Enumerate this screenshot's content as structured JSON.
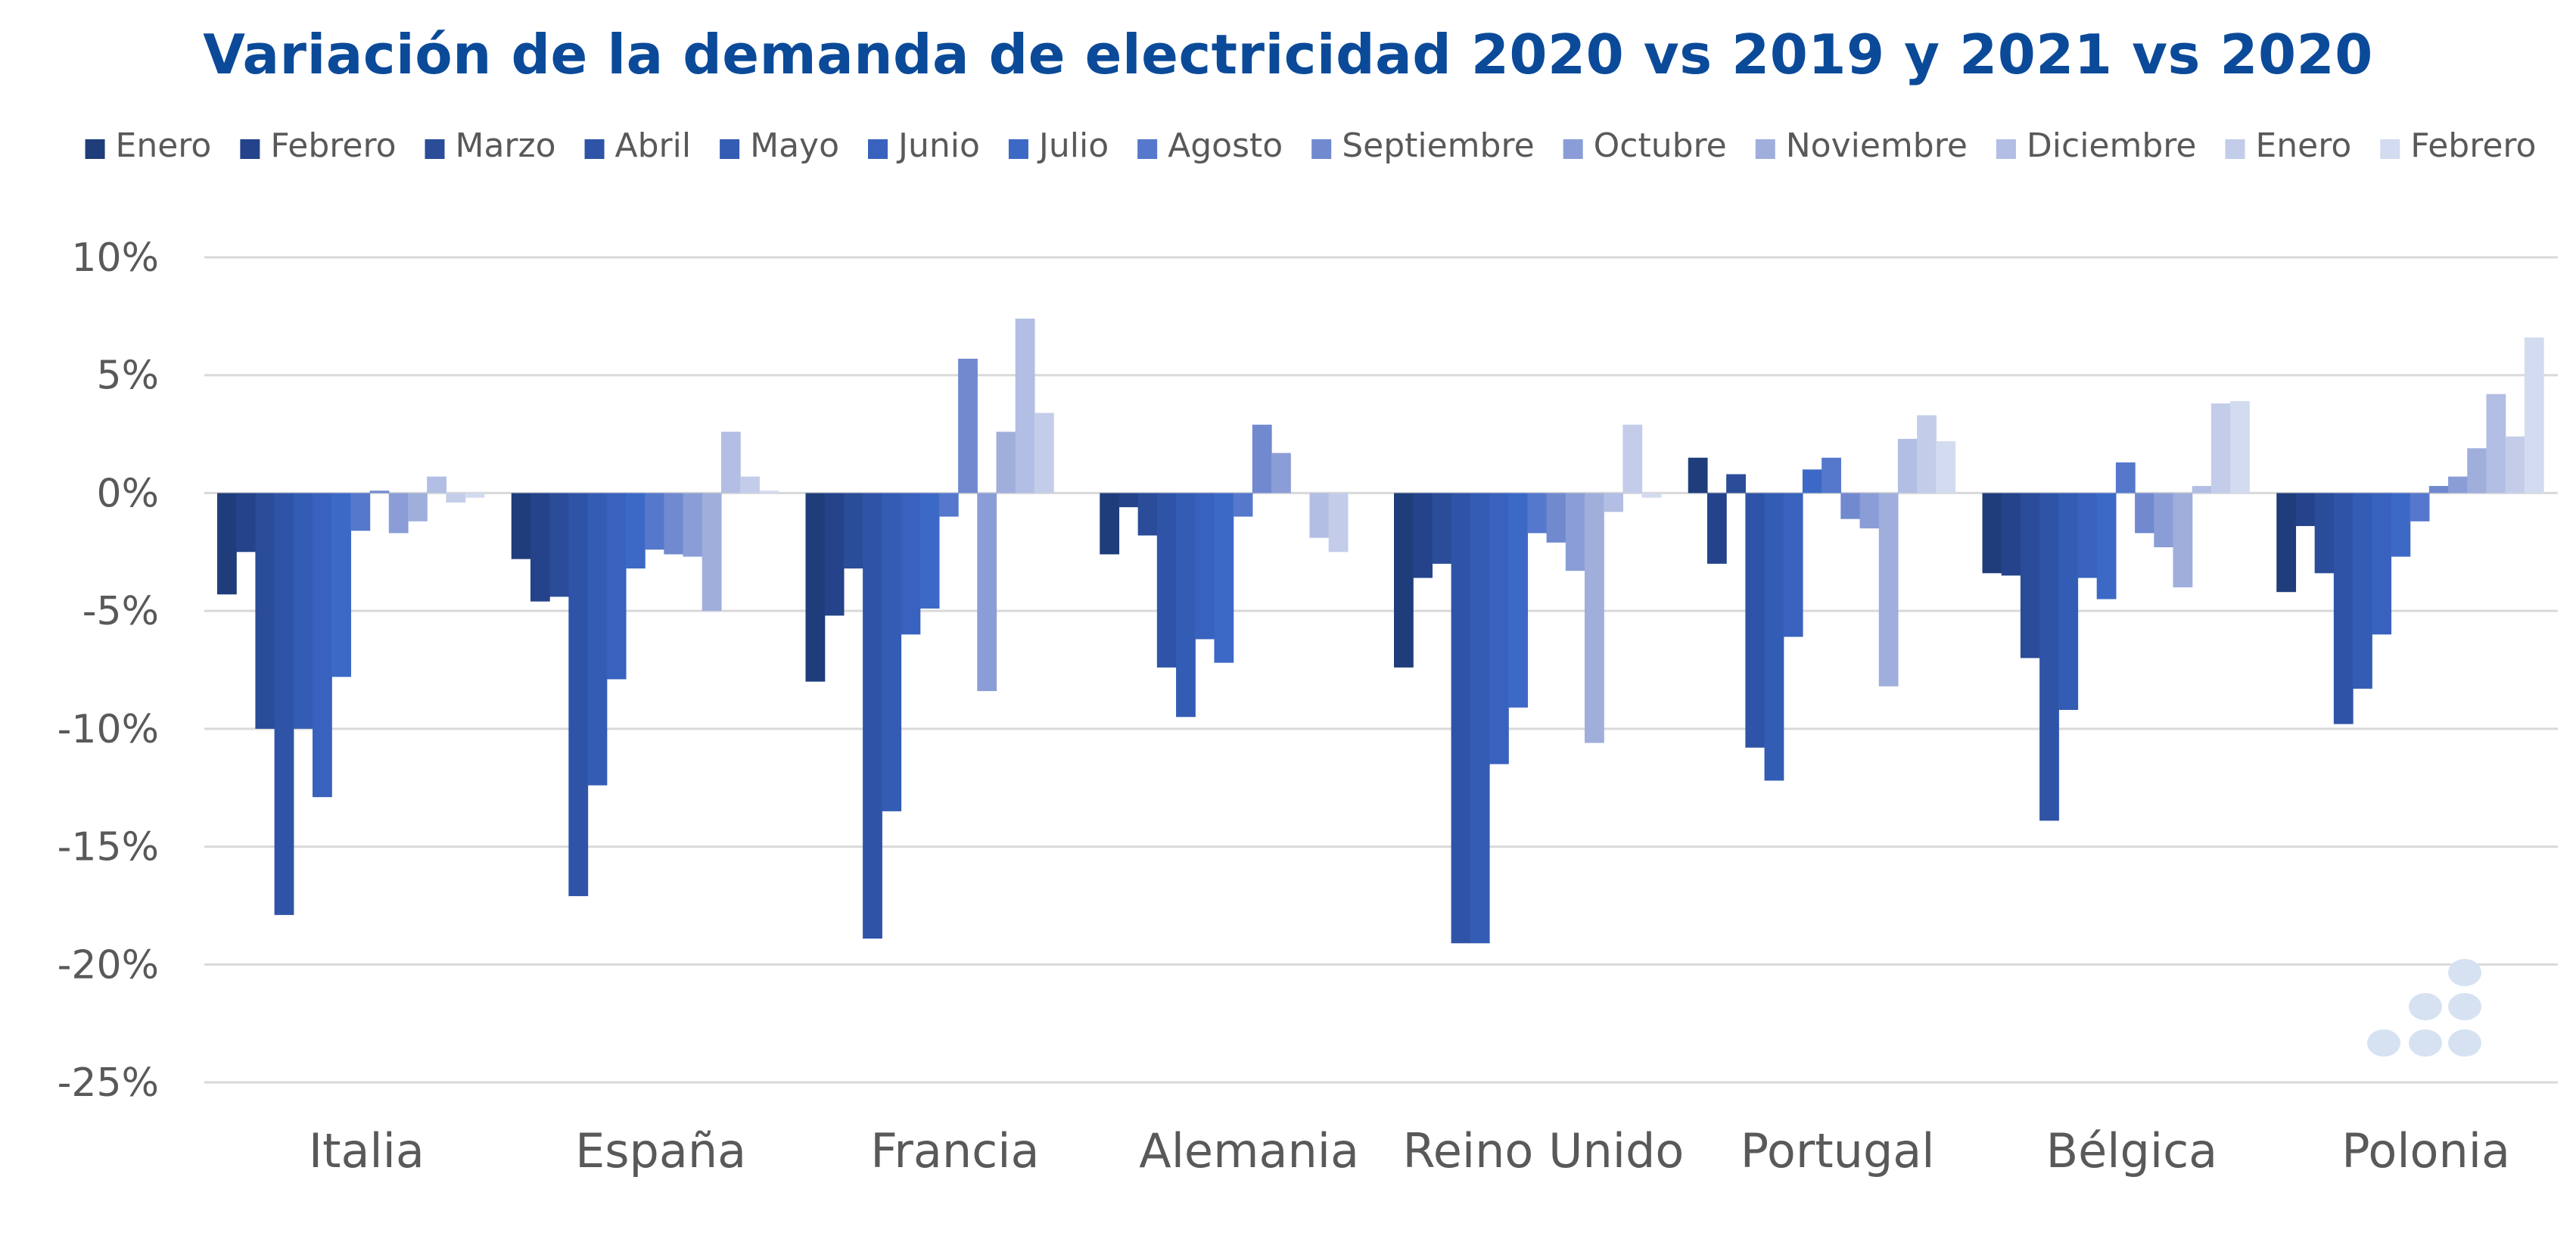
{
  "chart_data": {
    "type": "bar",
    "title": "Variación de la demanda de electricidad 2020 vs 2019 y 2021 vs 2020",
    "xlabel": "",
    "ylabel": "",
    "ylim": [
      -25,
      10
    ],
    "y_ticks": [
      10,
      5,
      0,
      -5,
      -10,
      -15,
      -20,
      -25
    ],
    "y_tick_labels": [
      "10%",
      "5%",
      "0%",
      "-5%",
      "-10%",
      "-15%",
      "-20%",
      "-25%"
    ],
    "grid": true,
    "legend_position": "top",
    "categories": [
      "Italia",
      "España",
      "Francia",
      "Alemania",
      "Reino Unido",
      "Portugal",
      "Bélgica",
      "Polonia"
    ],
    "series": [
      {
        "name": "Enero",
        "color": "#1f3d7a",
        "values": [
          -4.3,
          -2.8,
          -8.0,
          -2.6,
          -7.4,
          1.5,
          -3.4,
          -4.2
        ]
      },
      {
        "name": "Febrero",
        "color": "#24438a",
        "values": [
          -2.5,
          -4.6,
          -5.2,
          -0.6,
          -3.6,
          -3.0,
          -3.5,
          -1.4
        ]
      },
      {
        "name": "Marzo",
        "color": "#2a4c99",
        "values": [
          -10.0,
          -4.4,
          -3.2,
          -1.8,
          -3.0,
          0.8,
          -7.0,
          -3.4
        ]
      },
      {
        "name": "Abril",
        "color": "#2f54a7",
        "values": [
          -17.9,
          -17.1,
          -18.9,
          -7.4,
          -19.1,
          -10.8,
          -13.9,
          -9.8
        ]
      },
      {
        "name": "Mayo",
        "color": "#335cb4",
        "values": [
          -10.0,
          -12.4,
          -13.5,
          -9.5,
          -19.1,
          -12.2,
          -9.2,
          -8.3
        ]
      },
      {
        "name": "Junio",
        "color": "#3862be",
        "values": [
          -12.9,
          -7.9,
          -6.0,
          -6.2,
          -11.5,
          -6.1,
          -3.6,
          -6.0
        ]
      },
      {
        "name": "Julio",
        "color": "#3d69c6",
        "values": [
          -7.8,
          -3.2,
          -4.9,
          -7.2,
          -9.1,
          1.0,
          -4.5,
          -2.7
        ]
      },
      {
        "name": "Agosto",
        "color": "#5578cc",
        "values": [
          -1.6,
          -2.4,
          -1.0,
          -1.0,
          -1.7,
          1.5,
          1.3,
          -1.2
        ]
      },
      {
        "name": "Septiembre",
        "color": "#7089cf",
        "values": [
          0.1,
          -2.6,
          5.7,
          2.9,
          -2.1,
          -1.1,
          -1.7,
          0.3
        ]
      },
      {
        "name": "Octubre",
        "color": "#8a9dd6",
        "values": [
          -1.7,
          -2.7,
          -8.4,
          1.7,
          -3.3,
          -1.5,
          -2.3,
          0.7
        ]
      },
      {
        "name": "Noviembre",
        "color": "#a0aedc",
        "values": [
          -1.2,
          -5.0,
          2.6,
          0.0,
          -10.6,
          -8.2,
          -4.0,
          1.9
        ]
      },
      {
        "name": "Diciembre",
        "color": "#b2bee3",
        "values": [
          0.7,
          2.6,
          7.4,
          -1.9,
          -0.8,
          2.3,
          0.3,
          4.2
        ]
      },
      {
        "name": "Enero",
        "color": "#c3cdea",
        "values": [
          -0.4,
          0.7,
          3.4,
          -2.5,
          2.9,
          3.3,
          3.8,
          2.4
        ]
      },
      {
        "name": "Febrero",
        "color": "#d3dbf0",
        "values": [
          -0.2,
          0.1,
          0.0,
          0.0,
          -0.2,
          2.2,
          3.9,
          6.6
        ]
      }
    ]
  }
}
